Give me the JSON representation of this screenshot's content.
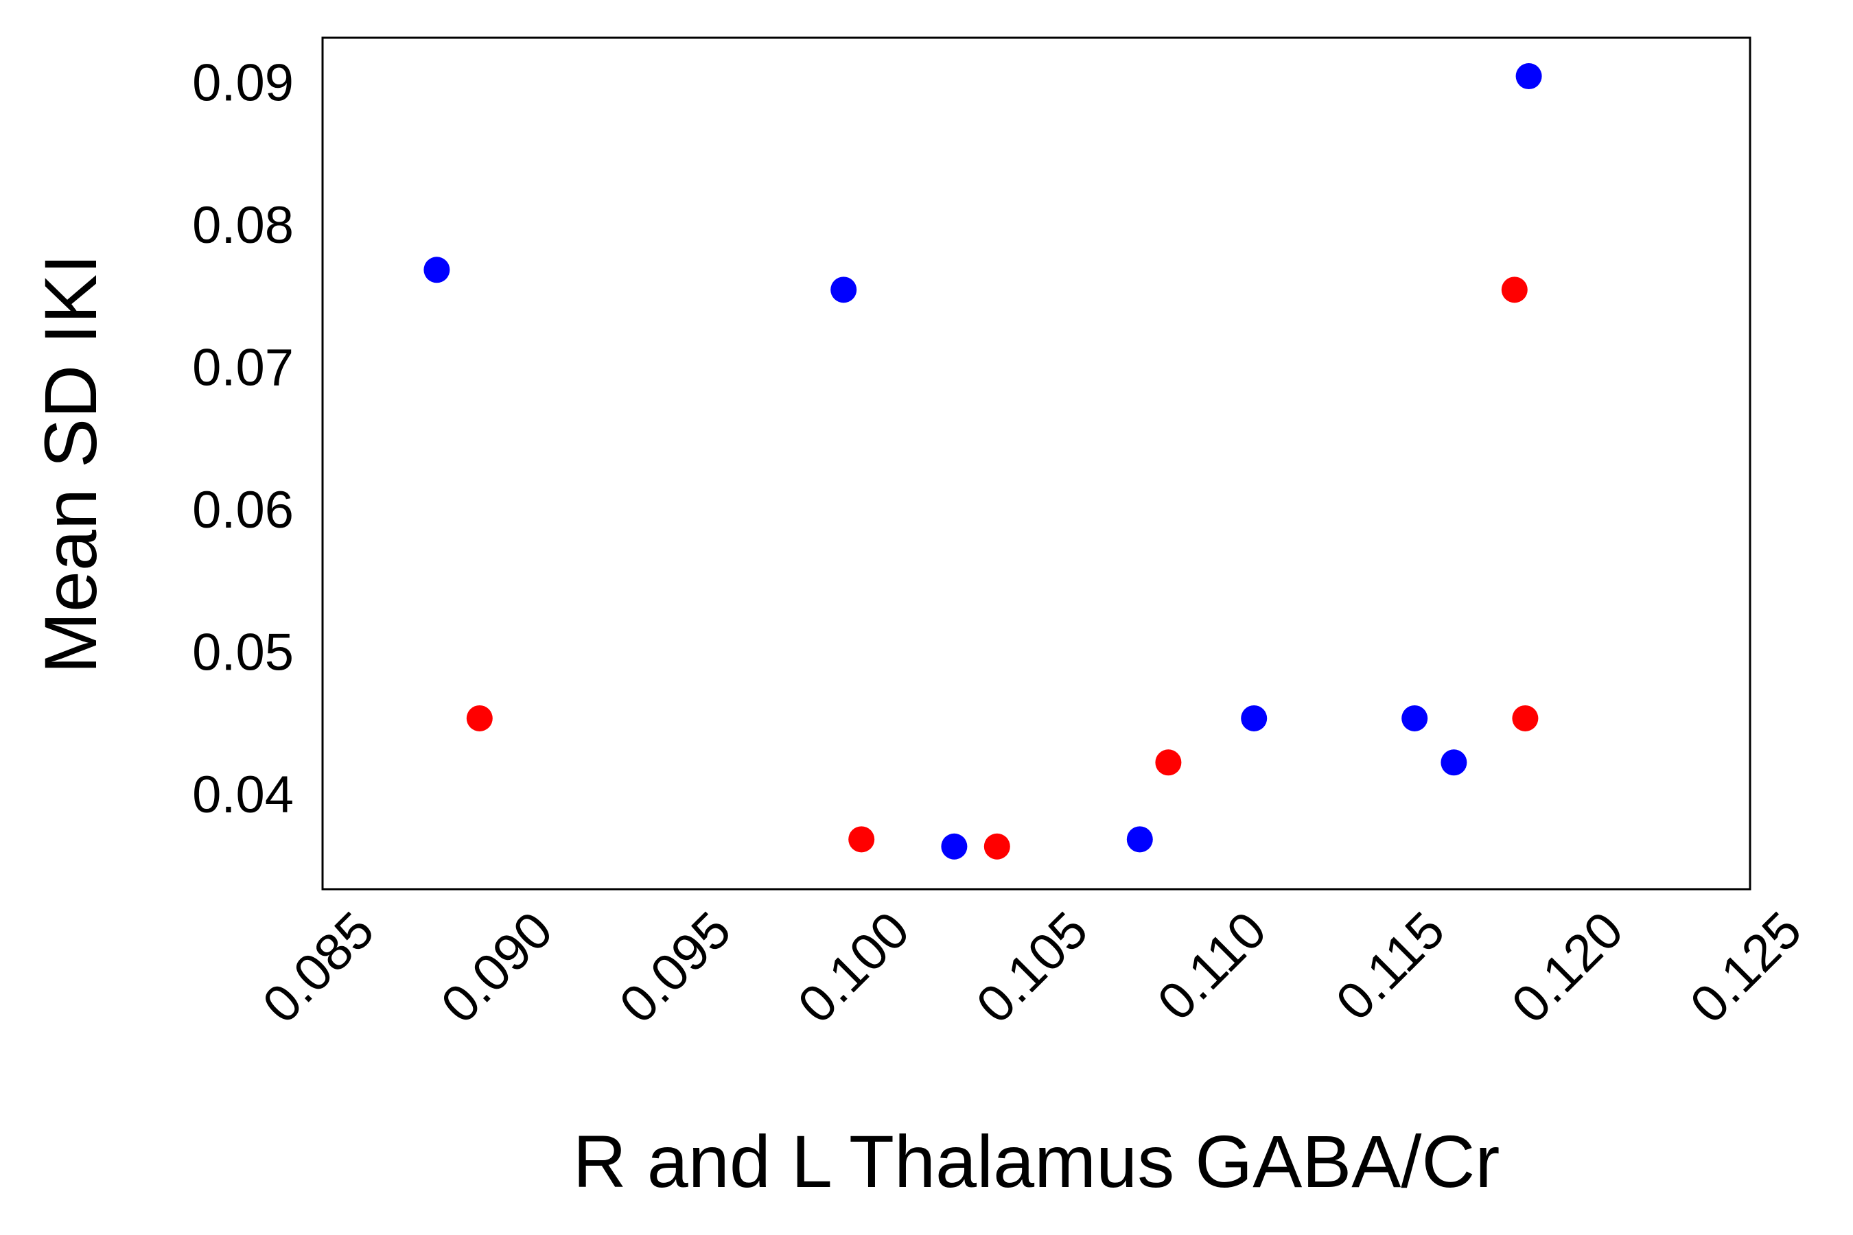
{
  "chart_data": {
    "type": "scatter",
    "xlabel": "R and L Thalamus GABA/Cr",
    "ylabel": "Mean SD IKI",
    "xlim": [
      0.0853,
      0.1253
    ],
    "ylim": [
      0.0333,
      0.0931
    ],
    "xticks": [
      "0.085",
      "0.090",
      "0.095",
      "0.100",
      "0.105",
      "0.110",
      "0.115",
      "0.120",
      "0.125"
    ],
    "yticks": [
      "0.04",
      "0.05",
      "0.06",
      "0.07",
      "0.08",
      "0.09"
    ],
    "grid": false,
    "legend": "none",
    "series": [
      {
        "color": "#0000ff",
        "x": [
          0.0885,
          0.0999,
          0.103,
          0.1082,
          0.1114,
          0.1159,
          0.117,
          0.1191
        ],
        "y": [
          0.0768,
          0.0754,
          0.0363,
          0.0368,
          0.0453,
          0.0453,
          0.0422,
          0.0904
        ]
      },
      {
        "color": "#ff0000",
        "x": [
          0.0897,
          0.1004,
          0.1042,
          0.109,
          0.1187,
          0.119
        ],
        "y": [
          0.0453,
          0.0368,
          0.0363,
          0.0422,
          0.0754,
          0.0453
        ]
      }
    ]
  }
}
